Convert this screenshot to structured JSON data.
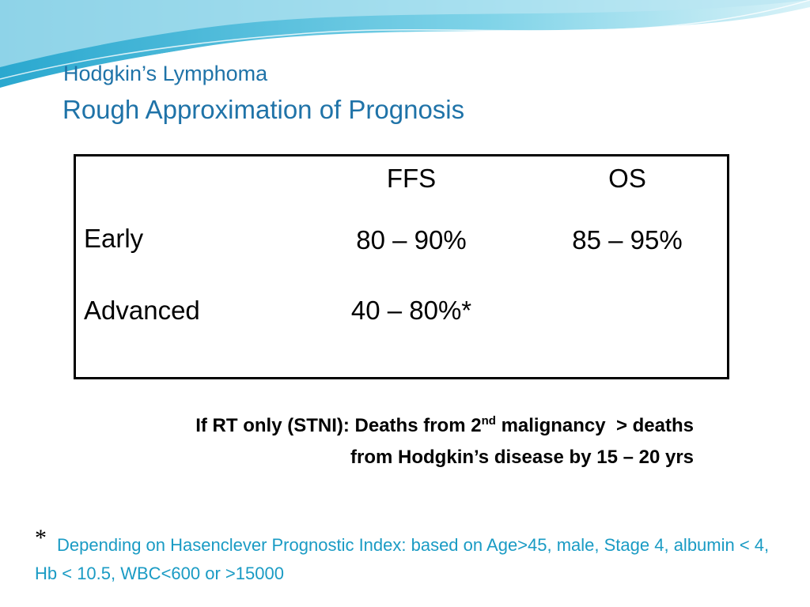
{
  "header": {
    "title": "Hodgkin’s Lymphoma",
    "subtitle": "Rough Approximation of Prognosis"
  },
  "table": {
    "columns": [
      "FFS",
      "OS"
    ],
    "rows": [
      [
        "Early",
        "80 – 90%",
        "85 – 95%"
      ],
      [
        "Advanced",
        "40 – 80%*"
      ]
    ]
  },
  "note": {
    "parts": [
      "If RT only (STNI): Deaths from 2",
      "nd",
      " malignancy  > deaths",
      "from Hodgkin’s disease by 15 – 20 yrs"
    ]
  },
  "footnote": {
    "marker": "*",
    "text": "Depending on Hasenclever Prognostic Index: based on Age>45, male, Stage 4, albumin < 4, Hb < 10.5, WBC<600 or >15000"
  }
}
